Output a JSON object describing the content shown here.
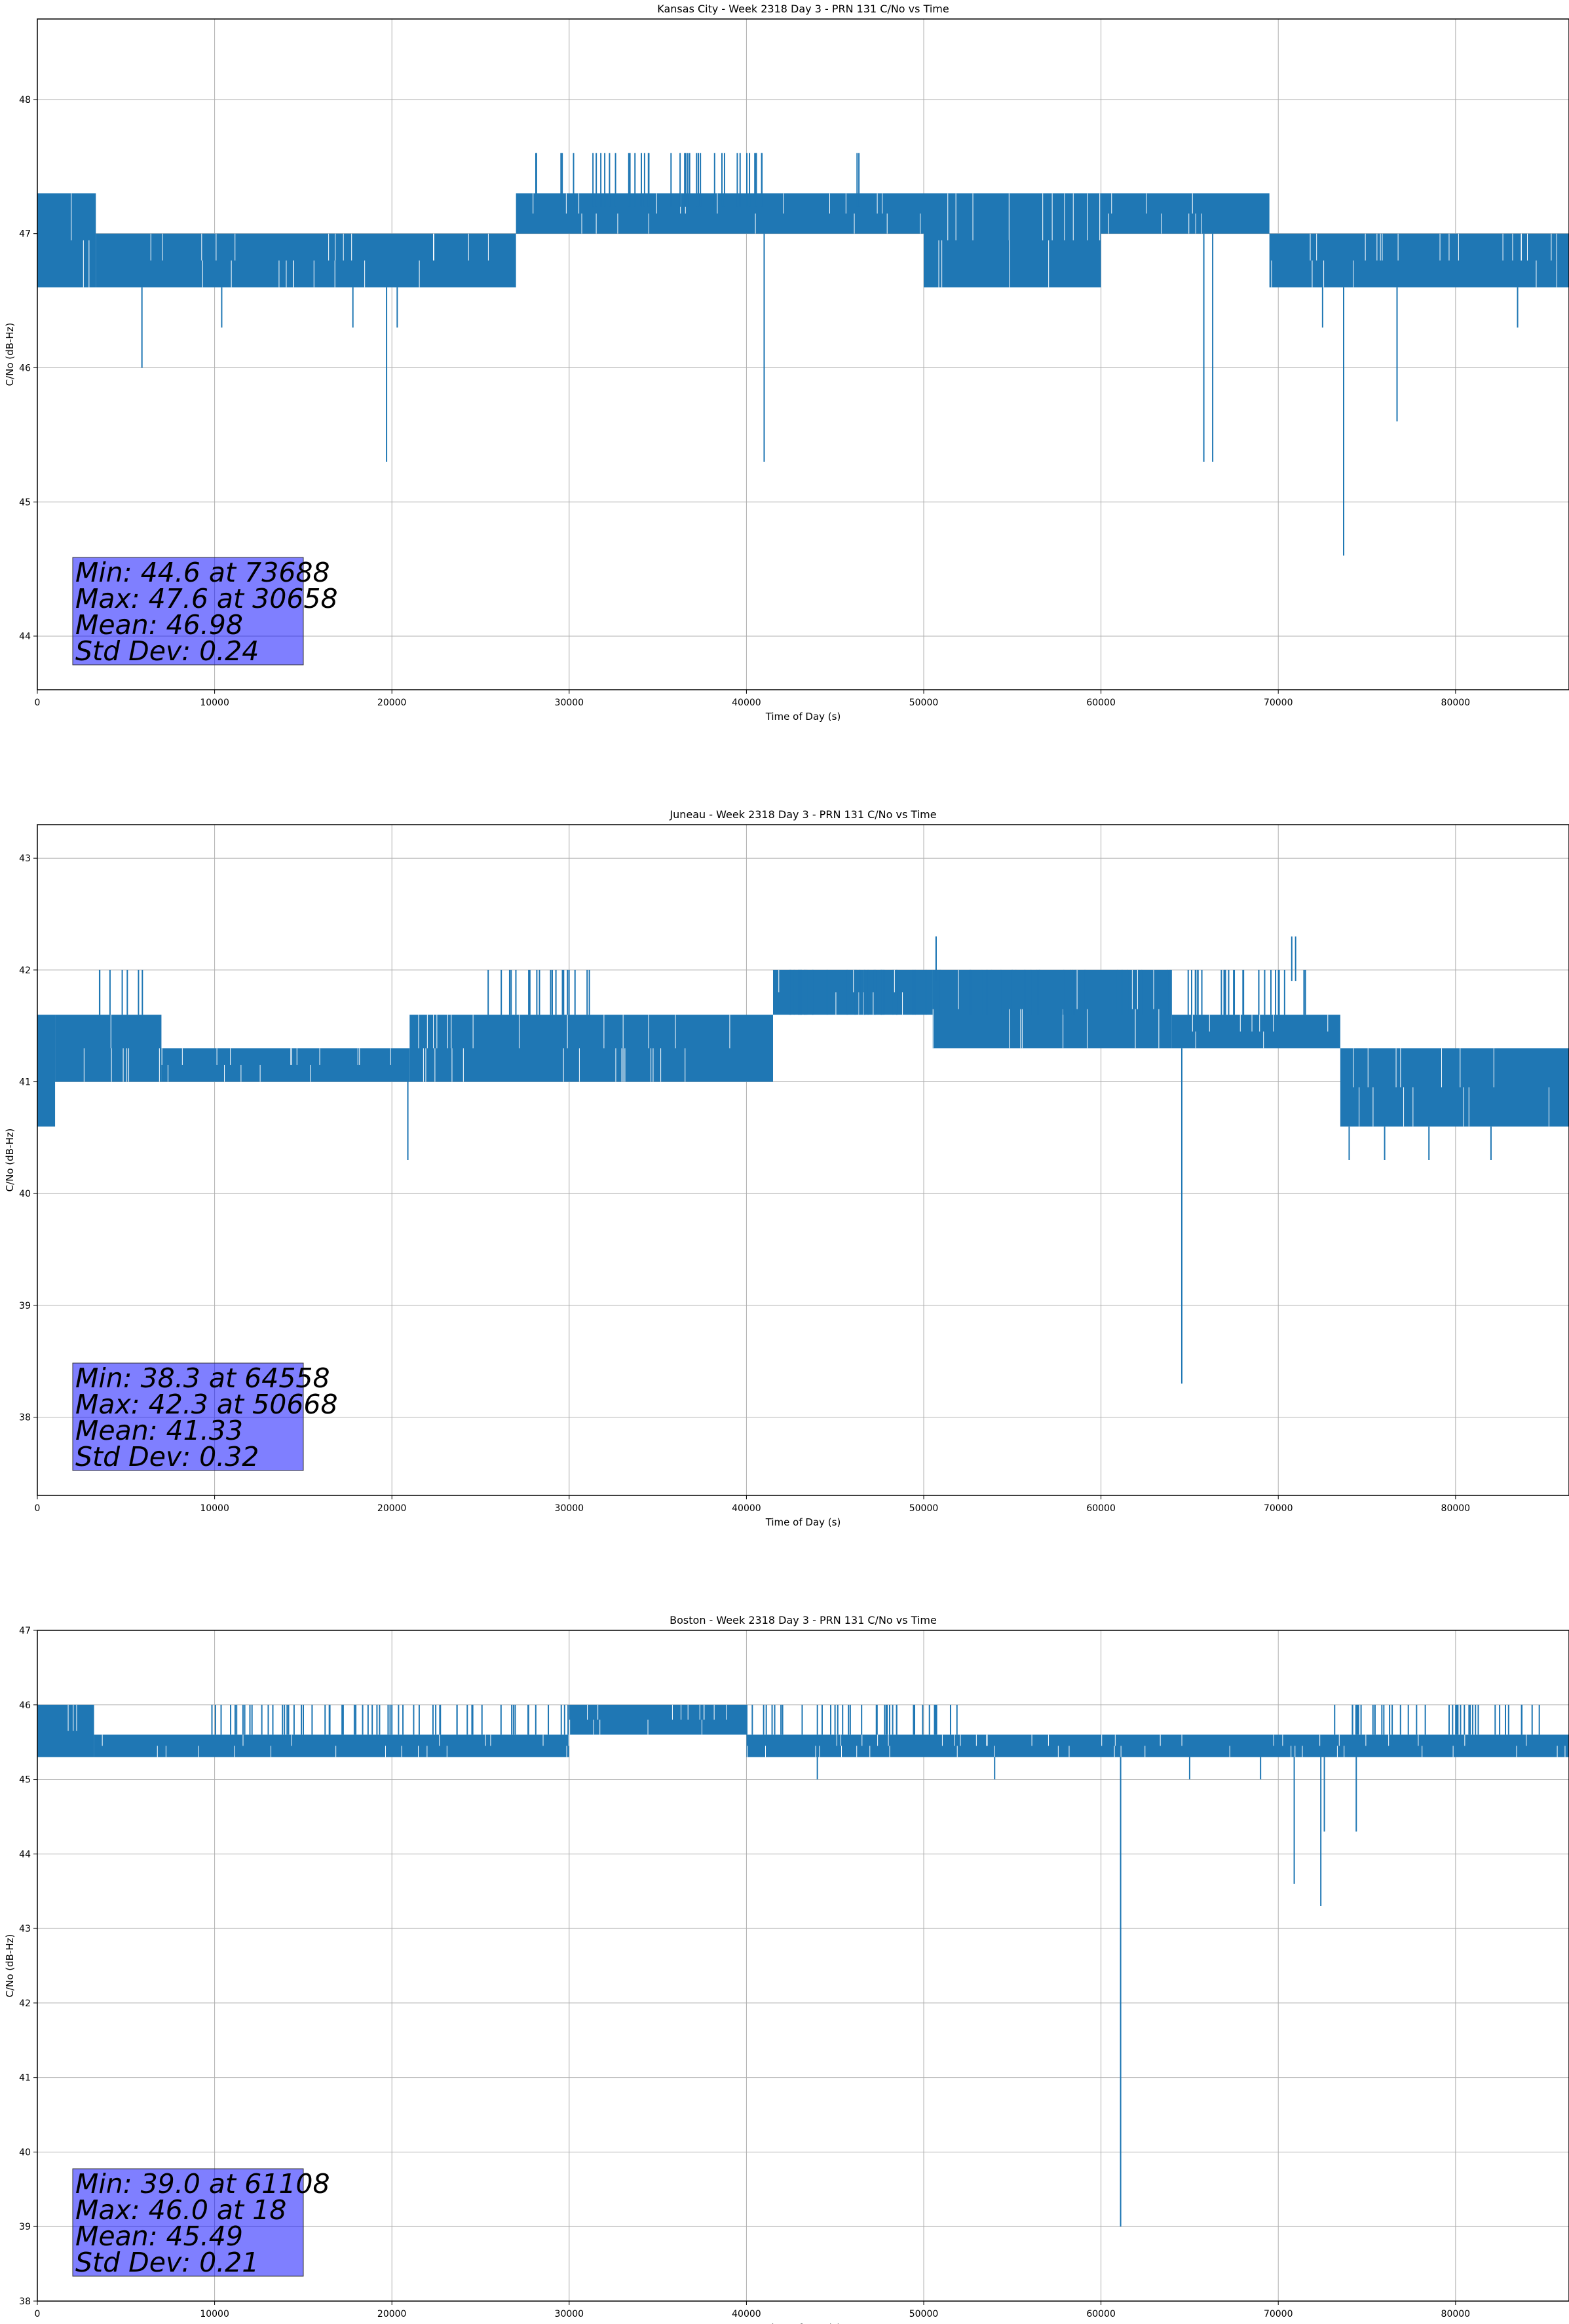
{
  "chart_data": [
    {
      "type": "line",
      "title": "Kansas City - Week 2318 Day 3 - PRN 131 C/No vs Time",
      "xlabel": "Time of Day (s)",
      "ylabel": "C/No (dB-Hz)",
      "xlim": [
        0,
        86400
      ],
      "ylim": [
        43.6,
        48.6
      ],
      "xticks": [
        0,
        10000,
        20000,
        30000,
        40000,
        50000,
        60000,
        70000,
        80000
      ],
      "yticks": [
        44,
        45,
        46,
        47,
        48
      ],
      "grid": true,
      "color": "#1f77b4",
      "stats": [
        "Min: 44.6 at 73688",
        "Max: 47.6 at 30658",
        "Mean: 46.98",
        "Std Dev: 0.24"
      ],
      "bands": [
        {
          "x0": 0,
          "x1": 3300,
          "lo": 46.6,
          "hi": 47.3
        },
        {
          "x0": 3300,
          "x1": 27000,
          "lo": 46.6,
          "hi": 47.0
        },
        {
          "x0": 27000,
          "x1": 50000,
          "lo": 47.0,
          "hi": 47.3
        },
        {
          "x0": 50000,
          "x1": 60000,
          "lo": 46.6,
          "hi": 47.3
        },
        {
          "x0": 60000,
          "x1": 69500,
          "lo": 47.0,
          "hi": 47.3
        },
        {
          "x0": 69500,
          "x1": 86400,
          "lo": 46.6,
          "hi": 47.0
        }
      ],
      "spikes": [
        {
          "x": 5900,
          "y": 46.0
        },
        {
          "x": 10400,
          "y": 46.3
        },
        {
          "x": 17800,
          "y": 46.3
        },
        {
          "x": 19700,
          "y": 45.3
        },
        {
          "x": 20300,
          "y": 46.3
        },
        {
          "x": 41000,
          "y": 45.3
        },
        {
          "x": 65800,
          "y": 45.3
        },
        {
          "x": 66300,
          "y": 45.3
        },
        {
          "x": 72500,
          "y": 46.3
        },
        {
          "x": 73688,
          "y": 44.6
        },
        {
          "x": 76700,
          "y": 45.6
        },
        {
          "x": 83500,
          "y": 46.3
        }
      ],
      "upspikes": [
        {
          "x0": 28000,
          "x1": 41000,
          "y": 47.6
        },
        {
          "x0": 46200,
          "x1": 46400,
          "y": 47.6
        }
      ]
    },
    {
      "type": "line",
      "title": "Juneau - Week 2318 Day 3 - PRN 131 C/No vs Time",
      "xlabel": "Time of Day (s)",
      "ylabel": "C/No (dB-Hz)",
      "xlim": [
        0,
        86400
      ],
      "ylim": [
        37.3,
        43.3
      ],
      "xticks": [
        0,
        10000,
        20000,
        30000,
        40000,
        50000,
        60000,
        70000,
        80000
      ],
      "yticks": [
        38,
        39,
        40,
        41,
        42,
        43
      ],
      "grid": true,
      "color": "#1f77b4",
      "stats": [
        "Min: 38.3 at 64558",
        "Max: 42.3 at 50668",
        "Mean: 41.33",
        "Std Dev: 0.32"
      ],
      "bands": [
        {
          "x0": 0,
          "x1": 1000,
          "lo": 40.6,
          "hi": 41.6
        },
        {
          "x0": 1000,
          "x1": 7000,
          "lo": 41.0,
          "hi": 41.6
        },
        {
          "x0": 7000,
          "x1": 21000,
          "lo": 41.0,
          "hi": 41.3
        },
        {
          "x0": 21000,
          "x1": 41500,
          "lo": 41.0,
          "hi": 41.6
        },
        {
          "x0": 41500,
          "x1": 50500,
          "lo": 41.6,
          "hi": 42.0
        },
        {
          "x0": 50500,
          "x1": 64000,
          "lo": 41.3,
          "hi": 42.0
        },
        {
          "x0": 64000,
          "x1": 73500,
          "lo": 41.3,
          "hi": 41.6
        },
        {
          "x0": 73500,
          "x1": 86400,
          "lo": 40.6,
          "hi": 41.3
        }
      ],
      "spikes": [
        {
          "x": 20900,
          "y": 40.3
        },
        {
          "x": 64558,
          "y": 38.3
        },
        {
          "x": 74000,
          "y": 40.3
        },
        {
          "x": 76000,
          "y": 40.3
        },
        {
          "x": 78500,
          "y": 40.3
        },
        {
          "x": 82000,
          "y": 40.3
        }
      ],
      "upspikes": [
        {
          "x0": 3500,
          "x1": 6000,
          "y": 42.0
        },
        {
          "x0": 25000,
          "x1": 31500,
          "y": 42.0
        },
        {
          "x0": 42000,
          "x1": 72000,
          "y": 42.0
        },
        {
          "x0": 50600,
          "x1": 50700,
          "y": 42.3
        },
        {
          "x0": 70100,
          "x1": 71000,
          "y": 42.3
        }
      ]
    },
    {
      "type": "line",
      "title": "Boston - Week 2318 Day 3 - PRN 131 C/No vs Time",
      "xlabel": "Time of Day (s)",
      "ylabel": "C/No (dB-Hz)",
      "xlim": [
        0,
        86400
      ],
      "ylim": [
        38.0,
        47.0
      ],
      "xticks": [
        0,
        10000,
        20000,
        30000,
        40000,
        50000,
        60000,
        70000,
        80000
      ],
      "yticks": [
        38,
        39,
        40,
        41,
        42,
        43,
        44,
        45,
        46,
        47
      ],
      "grid": true,
      "color": "#1f77b4",
      "stats": [
        "Min: 39.0 at 61108",
        "Max: 46.0 at 18",
        "Mean: 45.49",
        "Std Dev: 0.21"
      ],
      "bands": [
        {
          "x0": 0,
          "x1": 3200,
          "lo": 45.3,
          "hi": 46.0
        },
        {
          "x0": 3200,
          "x1": 30000,
          "lo": 45.3,
          "hi": 45.6
        },
        {
          "x0": 30000,
          "x1": 40000,
          "lo": 45.6,
          "hi": 46.0
        },
        {
          "x0": 40000,
          "x1": 86400,
          "lo": 45.3,
          "hi": 45.6
        }
      ],
      "spikes": [
        {
          "x": 61108,
          "y": 39.0
        },
        {
          "x": 70900,
          "y": 43.6
        },
        {
          "x": 72400,
          "y": 43.3
        },
        {
          "x": 72600,
          "y": 44.3
        },
        {
          "x": 74400,
          "y": 44.3
        },
        {
          "x": 44000,
          "y": 45.0
        },
        {
          "x": 54000,
          "y": 45.0
        },
        {
          "x": 65000,
          "y": 45.0
        },
        {
          "x": 69000,
          "y": 45.0
        }
      ],
      "upspikes": [
        {
          "x0": 9500,
          "x1": 30000,
          "y": 46.0
        },
        {
          "x0": 40000,
          "x1": 52000,
          "y": 46.0
        },
        {
          "x0": 73000,
          "x1": 86000,
          "y": 46.0
        }
      ]
    }
  ]
}
